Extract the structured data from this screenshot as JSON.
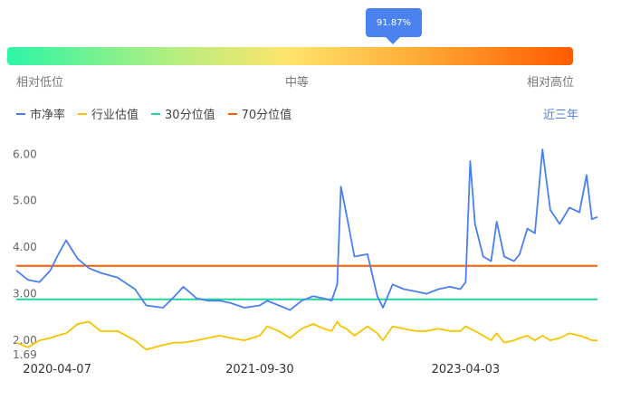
{
  "percentile": {
    "value_label": "91.87%",
    "value": 91.87,
    "low_label": "相对低位",
    "mid_label": "中等",
    "high_label": "相对高位"
  },
  "legend": {
    "items": [
      {
        "label": "市净率",
        "color": "#4a7ff0"
      },
      {
        "label": "行业估值",
        "color": "#f5c400"
      },
      {
        "label": "30分位值",
        "color": "#22d49a"
      },
      {
        "label": "70分位值",
        "color": "#ff5a00"
      }
    ]
  },
  "range_label": "近三年",
  "chart_data": {
    "type": "line",
    "x_range": [
      "2019-12-20",
      "2024-03-20"
    ],
    "x_ticks": [
      "2020-04-07",
      "2021-09-30",
      "2023-04-03"
    ],
    "y_ticks": [
      "6.00",
      "5.00",
      "4.00",
      "3.00",
      "2.00"
    ],
    "y_min_label": "1.69",
    "ylim": [
      1.69,
      6.2
    ],
    "series": [
      {
        "name": "市净率",
        "color": "#4a7ff0",
        "points": [
          [
            "2019-12-20",
            3.5
          ],
          [
            "2020-01-20",
            3.3
          ],
          [
            "2020-02-20",
            3.25
          ],
          [
            "2020-03-20",
            3.5
          ],
          [
            "2020-04-07",
            3.8
          ],
          [
            "2020-05-01",
            4.15
          ],
          [
            "2020-06-01",
            3.75
          ],
          [
            "2020-07-01",
            3.55
          ],
          [
            "2020-08-01",
            3.45
          ],
          [
            "2020-09-15",
            3.35
          ],
          [
            "2020-11-01",
            3.1
          ],
          [
            "2020-12-01",
            2.75
          ],
          [
            "2021-01-15",
            2.7
          ],
          [
            "2021-02-15",
            2.95
          ],
          [
            "2021-03-10",
            3.15
          ],
          [
            "2021-04-15",
            2.9
          ],
          [
            "2021-05-15",
            2.85
          ],
          [
            "2021-06-15",
            2.85
          ],
          [
            "2021-07-15",
            2.8
          ],
          [
            "2021-08-20",
            2.7
          ],
          [
            "2021-09-30",
            2.75
          ],
          [
            "2021-10-20",
            2.85
          ],
          [
            "2021-11-20",
            2.75
          ],
          [
            "2021-12-20",
            2.65
          ],
          [
            "2022-01-20",
            2.85
          ],
          [
            "2022-02-20",
            2.95
          ],
          [
            "2022-03-20",
            2.9
          ],
          [
            "2022-04-10",
            2.85
          ],
          [
            "2022-04-25",
            3.2
          ],
          [
            "2022-05-05",
            5.3
          ],
          [
            "2022-05-20",
            4.7
          ],
          [
            "2022-06-10",
            3.8
          ],
          [
            "2022-07-15",
            3.85
          ],
          [
            "2022-08-10",
            2.95
          ],
          [
            "2022-08-25",
            2.7
          ],
          [
            "2022-09-20",
            3.2
          ],
          [
            "2022-10-20",
            3.1
          ],
          [
            "2022-11-20",
            3.05
          ],
          [
            "2022-12-20",
            3.0
          ],
          [
            "2023-01-20",
            3.1
          ],
          [
            "2023-02-20",
            3.15
          ],
          [
            "2023-03-20",
            3.1
          ],
          [
            "2023-04-03",
            3.25
          ],
          [
            "2023-04-15",
            5.85
          ],
          [
            "2023-04-28",
            4.5
          ],
          [
            "2023-05-20",
            3.8
          ],
          [
            "2023-06-10",
            3.7
          ],
          [
            "2023-06-25",
            4.55
          ],
          [
            "2023-07-15",
            3.8
          ],
          [
            "2023-08-10",
            3.7
          ],
          [
            "2023-08-25",
            3.85
          ],
          [
            "2023-09-15",
            4.4
          ],
          [
            "2023-10-05",
            4.3
          ],
          [
            "2023-10-25",
            6.1
          ],
          [
            "2023-11-15",
            4.8
          ],
          [
            "2023-12-10",
            4.5
          ],
          [
            "2024-01-05",
            4.85
          ],
          [
            "2024-02-01",
            4.75
          ],
          [
            "2024-02-20",
            5.55
          ],
          [
            "2024-03-05",
            4.6
          ],
          [
            "2024-03-20",
            4.65
          ]
        ]
      },
      {
        "name": "行业估值",
        "color": "#f5c400",
        "points": [
          [
            "2019-12-20",
            1.95
          ],
          [
            "2020-01-20",
            1.85
          ],
          [
            "2020-02-20",
            2.0
          ],
          [
            "2020-03-20",
            2.05
          ],
          [
            "2020-04-07",
            2.1
          ],
          [
            "2020-05-01",
            2.15
          ],
          [
            "2020-06-01",
            2.35
          ],
          [
            "2020-07-01",
            2.4
          ],
          [
            "2020-08-01",
            2.2
          ],
          [
            "2020-09-15",
            2.2
          ],
          [
            "2020-11-01",
            2.0
          ],
          [
            "2020-12-01",
            1.8
          ],
          [
            "2021-01-15",
            1.9
          ],
          [
            "2021-02-15",
            1.95
          ],
          [
            "2021-03-10",
            1.95
          ],
          [
            "2021-04-15",
            2.0
          ],
          [
            "2021-05-15",
            2.05
          ],
          [
            "2021-06-15",
            2.1
          ],
          [
            "2021-07-15",
            2.05
          ],
          [
            "2021-08-20",
            2.0
          ],
          [
            "2021-09-30",
            2.1
          ],
          [
            "2021-10-20",
            2.3
          ],
          [
            "2021-11-20",
            2.2
          ],
          [
            "2021-12-20",
            2.05
          ],
          [
            "2022-01-20",
            2.25
          ],
          [
            "2022-02-20",
            2.35
          ],
          [
            "2022-03-20",
            2.25
          ],
          [
            "2022-04-10",
            2.2
          ],
          [
            "2022-04-25",
            2.4
          ],
          [
            "2022-05-05",
            2.3
          ],
          [
            "2022-05-20",
            2.25
          ],
          [
            "2022-06-10",
            2.1
          ],
          [
            "2022-07-15",
            2.3
          ],
          [
            "2022-08-10",
            2.15
          ],
          [
            "2022-08-25",
            2.0
          ],
          [
            "2022-09-20",
            2.3
          ],
          [
            "2022-10-20",
            2.25
          ],
          [
            "2022-11-20",
            2.2
          ],
          [
            "2022-12-20",
            2.2
          ],
          [
            "2023-01-20",
            2.25
          ],
          [
            "2023-02-20",
            2.2
          ],
          [
            "2023-03-20",
            2.2
          ],
          [
            "2023-04-03",
            2.3
          ],
          [
            "2023-04-15",
            2.25
          ],
          [
            "2023-04-28",
            2.2
          ],
          [
            "2023-05-20",
            2.1
          ],
          [
            "2023-06-10",
            2.0
          ],
          [
            "2023-06-25",
            2.15
          ],
          [
            "2023-07-15",
            1.95
          ],
          [
            "2023-08-10",
            2.0
          ],
          [
            "2023-08-25",
            2.05
          ],
          [
            "2023-09-15",
            2.1
          ],
          [
            "2023-10-05",
            2.0
          ],
          [
            "2023-10-25",
            2.1
          ],
          [
            "2023-11-15",
            2.0
          ],
          [
            "2023-12-10",
            2.05
          ],
          [
            "2024-01-05",
            2.15
          ],
          [
            "2024-02-01",
            2.1
          ],
          [
            "2024-02-20",
            2.05
          ],
          [
            "2024-03-05",
            2.0
          ],
          [
            "2024-03-20",
            2.0
          ]
        ]
      }
    ],
    "reference_lines": [
      {
        "name": "30分位值",
        "value": 2.88,
        "color": "#22d49a"
      },
      {
        "name": "70分位值",
        "value": 3.6,
        "color": "#ff5a00"
      }
    ],
    "grid": false,
    "legend_position": "top-left"
  }
}
